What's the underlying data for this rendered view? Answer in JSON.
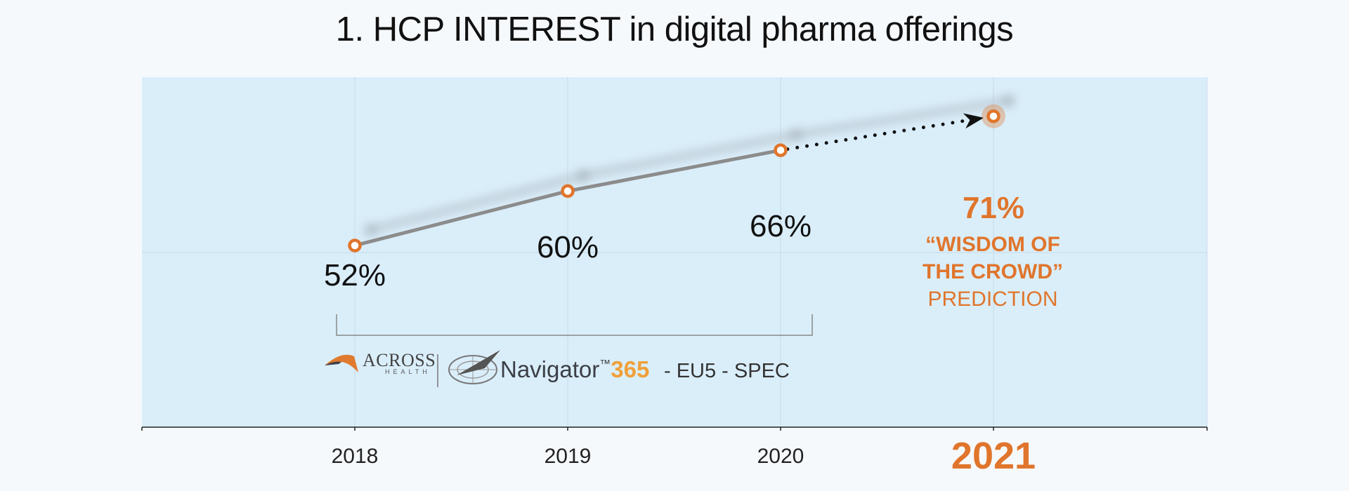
{
  "chart_data": {
    "type": "line",
    "title": "1. HCP INTEREST in digital pharma offerings",
    "categories": [
      "2018",
      "2019",
      "2020",
      "2021"
    ],
    "series": [
      {
        "values": [
          52,
          60,
          66,
          71
        ]
      }
    ],
    "value_labels": [
      "52%",
      "60%",
      "66%",
      "71%"
    ],
    "predicted_index": 3,
    "prediction_note": {
      "line1": "“WISDOM OF",
      "line2": "THE CROWD”",
      "line3": "PREDICTION"
    },
    "ylim": [
      0,
      100
    ],
    "grid": true,
    "source": {
      "brand": "ACROSS",
      "brand_sub": "HEALTH",
      "product": "Navigator",
      "tm": "™",
      "product_num": "365",
      "suffix": "- EU5 - SPEC"
    },
    "colors": {
      "plot_bg": "#daeefa",
      "line": "#8c8c8c",
      "marker": "#e0752c",
      "prediction": "#e0752c",
      "logo_orange": "#f0a03a"
    }
  }
}
